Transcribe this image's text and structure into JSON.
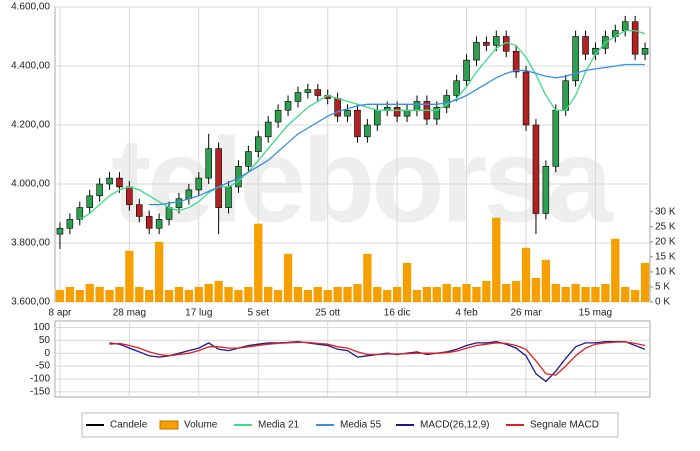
{
  "watermark": "teleborsa",
  "chart_data": [
    {
      "type": "candlestick",
      "categories": [
        "8 apr",
        null,
        null,
        null,
        null,
        null,
        null,
        "28 mag",
        null,
        null,
        null,
        null,
        null,
        null,
        "17 lug",
        null,
        null,
        null,
        null,
        null,
        "5 set",
        null,
        null,
        null,
        null,
        null,
        null,
        "25 ott",
        null,
        null,
        null,
        null,
        null,
        null,
        "16 dic",
        null,
        null,
        null,
        null,
        null,
        null,
        "4 feb",
        null,
        null,
        null,
        null,
        null,
        "26 mar",
        null,
        null,
        null,
        null,
        null,
        null,
        "15 mag",
        null,
        null,
        null,
        null,
        null
      ],
      "candles": {
        "name": "Candele",
        "color": "#000000",
        "up_color": "#2e9e4f",
        "down_color": "#b22222",
        "open": [
          3830,
          3850,
          3880,
          3920,
          3960,
          4000,
          4020,
          3990,
          3930,
          3890,
          3850,
          3880,
          3920,
          3950,
          3980,
          4020,
          4120,
          3920,
          3990,
          4060,
          4110,
          4160,
          4210,
          4250,
          4280,
          4310,
          4320,
          4300,
          4290,
          4230,
          4250,
          4160,
          4200,
          4250,
          4260,
          4230,
          4250,
          4280,
          4220,
          4260,
          4300,
          4350,
          4420,
          4480,
          4470,
          4500,
          4450,
          4380,
          4200,
          3900,
          4060,
          4250,
          4350,
          4500,
          4440,
          4460,
          4500,
          4520,
          4550,
          4440
        ],
        "high": [
          3870,
          3900,
          3940,
          3980,
          4020,
          4040,
          4040,
          4010,
          3950,
          3910,
          3900,
          3940,
          3970,
          4000,
          4040,
          4170,
          4140,
          4010,
          4080,
          4130,
          4180,
          4230,
          4270,
          4300,
          4330,
          4340,
          4340,
          4320,
          4310,
          4270,
          4270,
          4220,
          4270,
          4280,
          4280,
          4270,
          4300,
          4300,
          4280,
          4320,
          4370,
          4440,
          4500,
          4500,
          4520,
          4520,
          4470,
          4400,
          4220,
          4080,
          4270,
          4370,
          4520,
          4520,
          4480,
          4520,
          4540,
          4570,
          4570,
          4480
        ],
        "low": [
          3780,
          3830,
          3860,
          3900,
          3940,
          3980,
          3970,
          3910,
          3870,
          3830,
          3830,
          3860,
          3900,
          3930,
          3960,
          4000,
          3830,
          3900,
          3970,
          4040,
          4090,
          4140,
          4190,
          4230,
          4260,
          4290,
          4280,
          4270,
          4210,
          4210,
          4140,
          4140,
          4180,
          4230,
          4210,
          4210,
          4230,
          4200,
          4200,
          4240,
          4280,
          4330,
          4400,
          4450,
          4450,
          4430,
          4360,
          4180,
          3830,
          3880,
          4040,
          4230,
          4330,
          4420,
          4420,
          4440,
          4480,
          4500,
          4420,
          4420
        ],
        "close": [
          3850,
          3880,
          3920,
          3960,
          4000,
          4020,
          3990,
          3930,
          3890,
          3850,
          3880,
          3920,
          3950,
          3980,
          4020,
          4120,
          3920,
          3990,
          4060,
          4110,
          4160,
          4210,
          4250,
          4280,
          4310,
          4320,
          4300,
          4290,
          4230,
          4250,
          4160,
          4200,
          4250,
          4260,
          4230,
          4250,
          4280,
          4220,
          4260,
          4300,
          4350,
          4420,
          4480,
          4470,
          4500,
          4450,
          4380,
          4200,
          3900,
          4060,
          4250,
          4350,
          4500,
          4440,
          4460,
          4500,
          4520,
          4550,
          4440,
          4460
        ]
      },
      "series": [
        {
          "name": "Volume",
          "type": "bar",
          "axis": "y2",
          "color": "#f5a000",
          "values": [
            4,
            5,
            4,
            6,
            5,
            4,
            5,
            17,
            5,
            4,
            20,
            4,
            5,
            4,
            5,
            6,
            7,
            5,
            4,
            5,
            26,
            5,
            4,
            16,
            5,
            4,
            5,
            4,
            5,
            5,
            6,
            16,
            5,
            4,
            5,
            13,
            4,
            5,
            5,
            6,
            5,
            6,
            5,
            7,
            28,
            6,
            7,
            18,
            8,
            14,
            6,
            5,
            6,
            5,
            5,
            6,
            21,
            5,
            4,
            13
          ]
        },
        {
          "name": "Media 21",
          "type": "line",
          "color": "#3ddc84",
          "values": [
            null,
            null,
            3880,
            3900,
            3930,
            3960,
            3980,
            3990,
            3980,
            3960,
            3940,
            3920,
            3910,
            3920,
            3940,
            3970,
            3990,
            3990,
            4010,
            4040,
            4080,
            4120,
            4160,
            4200,
            4230,
            4260,
            4280,
            4300,
            4290,
            4280,
            4270,
            4260,
            4250,
            4250,
            4250,
            4250,
            4250,
            4250,
            4250,
            4270,
            4290,
            4330,
            4380,
            4420,
            4460,
            4480,
            4470,
            4430,
            4370,
            4300,
            4250,
            4250,
            4300,
            4380,
            4440,
            4480,
            4500,
            4520,
            4520,
            4510
          ]
        },
        {
          "name": "Media 55",
          "type": "line",
          "color": "#3b8fe0",
          "values": [
            null,
            null,
            null,
            null,
            null,
            null,
            null,
            null,
            null,
            3930,
            3930,
            3935,
            3940,
            3950,
            3960,
            3975,
            3990,
            4005,
            4020,
            4040,
            4060,
            4080,
            4110,
            4140,
            4170,
            4190,
            4210,
            4230,
            4245,
            4255,
            4265,
            4270,
            4270,
            4270,
            4270,
            4270,
            4270,
            4270,
            4270,
            4275,
            4285,
            4300,
            4320,
            4340,
            4360,
            4375,
            4385,
            4385,
            4375,
            4365,
            4360,
            4365,
            4375,
            4385,
            4390,
            4395,
            4400,
            4405,
            4405,
            4405
          ]
        }
      ],
      "ylim": [
        3600,
        4600
      ],
      "yticks": [
        {
          "value": 3600,
          "label": "3.600,00"
        },
        {
          "value": 3800,
          "label": "3.800,00"
        },
        {
          "value": 4000,
          "label": "4.000,00"
        },
        {
          "value": 4200,
          "label": "4.200,00"
        },
        {
          "value": 4400,
          "label": "4.400,00"
        },
        {
          "value": 4600,
          "label": "4.600,00"
        }
      ],
      "y2lim": [
        0,
        98
      ],
      "y2ticks": [
        {
          "value": 0,
          "label": "0 K"
        },
        {
          "value": 5,
          "label": "5 K"
        },
        {
          "value": 10,
          "label": "10 K"
        },
        {
          "value": 15,
          "label": "15 K"
        },
        {
          "value": 20,
          "label": "20 K"
        },
        {
          "value": 25,
          "label": "25 K"
        },
        {
          "value": 30,
          "label": "30 K"
        }
      ],
      "grid": true,
      "legend": "bottom"
    },
    {
      "type": "line",
      "series": [
        {
          "name": "MACD(26,12,9)",
          "color": "#1a1a8c",
          "values": [
            null,
            null,
            null,
            null,
            null,
            40,
            35,
            20,
            5,
            -10,
            -15,
            -10,
            0,
            10,
            20,
            40,
            15,
            10,
            20,
            30,
            35,
            40,
            40,
            42,
            45,
            40,
            35,
            30,
            15,
            10,
            -15,
            -10,
            -5,
            0,
            -5,
            0,
            5,
            -5,
            0,
            5,
            15,
            30,
            40,
            40,
            45,
            35,
            20,
            -10,
            -80,
            -110,
            -70,
            -20,
            25,
            40,
            40,
            45,
            45,
            45,
            30,
            15
          ]
        },
        {
          "name": "Segnale MACD",
          "color": "#e02020",
          "values": [
            null,
            null,
            null,
            null,
            null,
            35,
            38,
            30,
            20,
            5,
            -5,
            -10,
            -5,
            0,
            10,
            25,
            25,
            20,
            20,
            25,
            30,
            35,
            38,
            40,
            42,
            42,
            38,
            35,
            25,
            20,
            5,
            -5,
            -5,
            -3,
            -3,
            -2,
            0,
            0,
            0,
            2,
            8,
            20,
            30,
            35,
            40,
            38,
            30,
            15,
            -30,
            -80,
            -85,
            -50,
            -10,
            20,
            35,
            40,
            43,
            44,
            38,
            30
          ]
        }
      ],
      "ylim": [
        -170,
        125
      ],
      "yticks": [
        100,
        50,
        0,
        -50,
        -100,
        -150
      ],
      "grid": true
    }
  ]
}
